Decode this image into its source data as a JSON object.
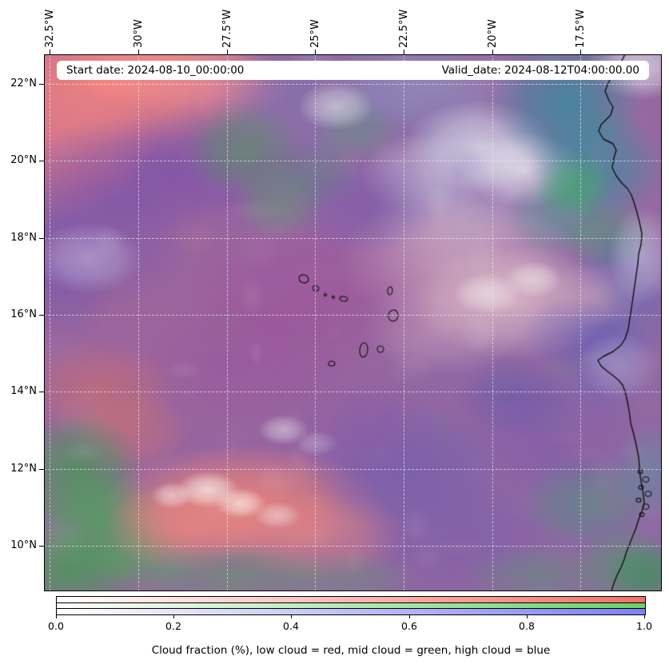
{
  "chart_data": {
    "type": "heatmap",
    "description": "RGB composite cloud-fraction map over the eastern tropical Atlantic and West African coast; red channel = low cloud, green = mid cloud, blue = high cloud",
    "x_axis": {
      "position": "top",
      "tick_rotation_deg": 90,
      "tick_labels": [
        "32.5°W",
        "30°W",
        "27.5°W",
        "25°W",
        "22.5°W",
        "20°W",
        "17.5°W"
      ]
    },
    "y_axis": {
      "tick_labels": [
        "22°N",
        "20°N",
        "18°N",
        "16°N",
        "14°N",
        "12°N",
        "10°N"
      ]
    },
    "grid": {
      "visible": true,
      "style": "dashed"
    },
    "annotations": [
      {
        "id": "start-date",
        "text": "Start date: 2024-08-10_00:00:00"
      },
      {
        "id": "valid-date",
        "text": "Valid_date: 2024-08-12T04:00:00.00"
      }
    ],
    "colorbar": {
      "orientation": "horizontal",
      "range": [
        0.0,
        1.0
      ],
      "tick_labels": [
        "0.0",
        "0.2",
        "0.4",
        "0.6",
        "0.8",
        "1.0"
      ],
      "bands": [
        {
          "label": "low cloud",
          "color": "#f4706a"
        },
        {
          "label": "mid cloud",
          "color": "#66d466"
        },
        {
          "label": "high cloud",
          "color": "#8080f0"
        }
      ]
    },
    "caption": "Cloud fraction (%), low cloud = red, mid cloud = green, high cloud = blue",
    "overlays": [
      "west-africa-coastline",
      "cape-verde-islands"
    ]
  }
}
